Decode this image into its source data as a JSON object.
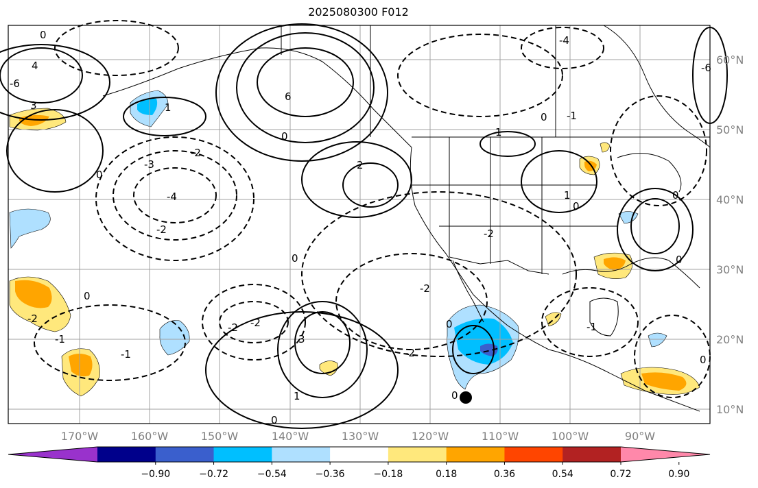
{
  "title": "2025080300 F012",
  "map": {
    "region": "North Pacific / North America",
    "lon_labels": [
      "170°W",
      "160°W",
      "150°W",
      "140°W",
      "130°W",
      "120°W",
      "110°W",
      "100°W",
      "90°W"
    ],
    "lat_labels": [
      "60°N",
      "50°N",
      "40°N",
      "30°N",
      "20°N",
      "10°N"
    ],
    "gridlines": true,
    "contours": {
      "solid_positive": true,
      "dashed_negative": true,
      "labels": [
        "0",
        "1",
        "-1",
        "2",
        "-2",
        "3",
        "-3",
        "4",
        "-4",
        "6",
        "-6"
      ]
    },
    "marker": "filled-circle"
  },
  "colorbar": {
    "ticks": [
      "−0.90",
      "−0.72",
      "−0.54",
      "−0.36",
      "−0.18",
      "0.18",
      "0.36",
      "0.54",
      "0.72",
      "0.90"
    ],
    "colors": [
      "#9932cc",
      "#00008b",
      "#3a5fcd",
      "#00bfff",
      "#afe0ff",
      "#ffffff",
      "#ffe87c",
      "#ffa500",
      "#ff4500",
      "#b22222",
      "#ff88aa"
    ],
    "extend": "both"
  }
}
